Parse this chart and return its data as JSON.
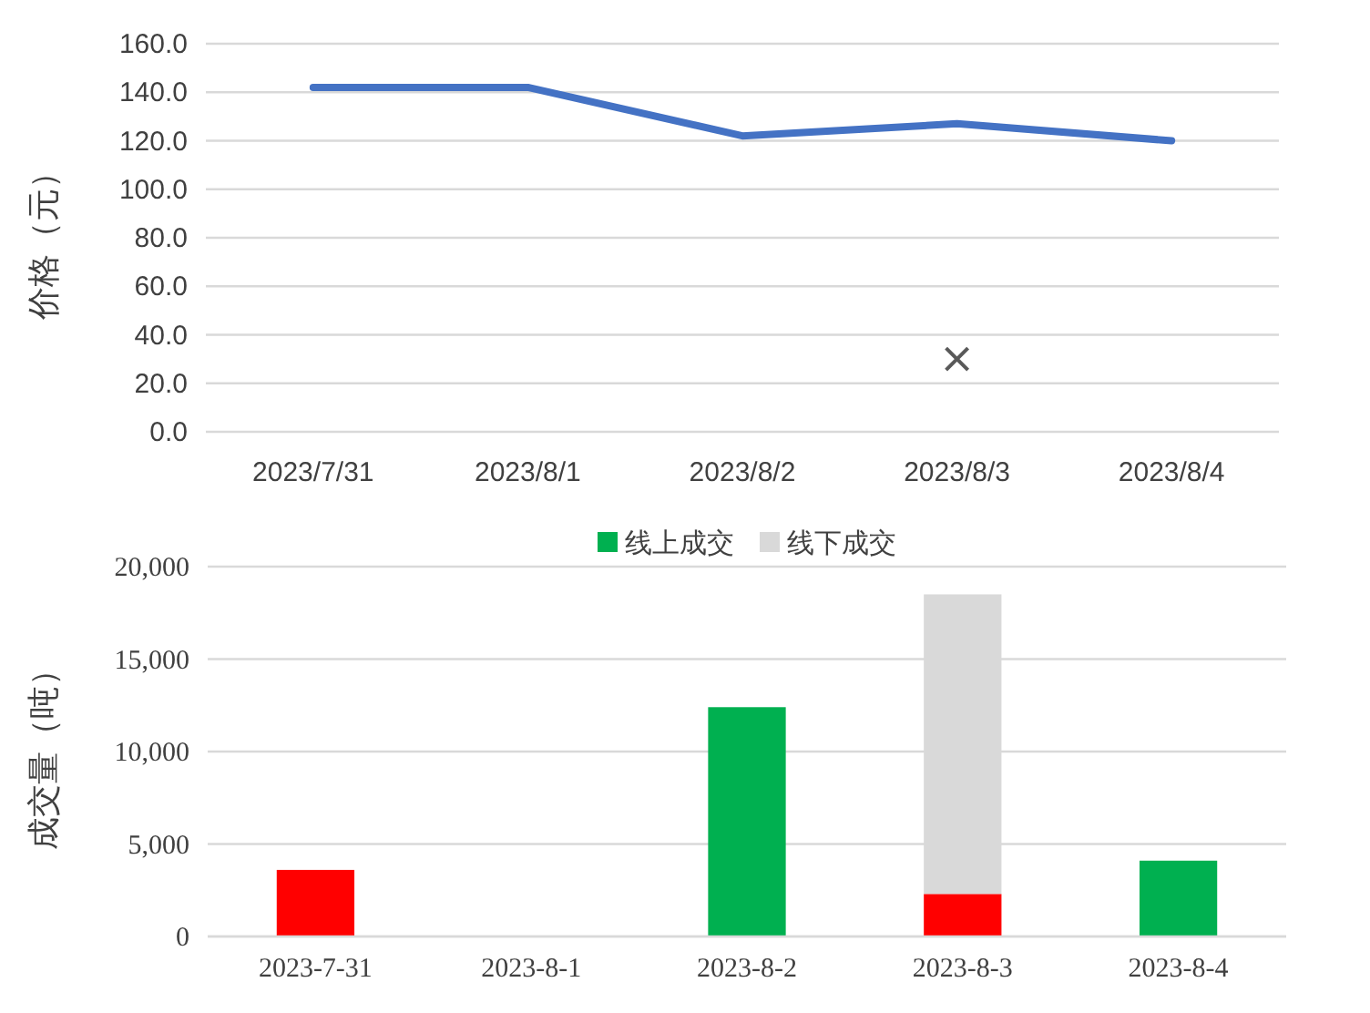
{
  "chart_data": [
    {
      "type": "line",
      "ylabel": "价格（元）",
      "categories": [
        "2023/7/31",
        "2023/8/1",
        "2023/8/2",
        "2023/8/3",
        "2023/8/4"
      ],
      "series": [
        {
          "type": "line",
          "color": "#4472c4",
          "values": [
            142,
            142,
            122,
            127,
            120
          ]
        },
        {
          "type": "scatter",
          "marker": "cross",
          "color": "#595959",
          "values": [
            null,
            null,
            null,
            30,
            null
          ]
        }
      ],
      "ylim": [
        0,
        160
      ],
      "yticks": [
        {
          "value": 0,
          "label": "0.0"
        },
        {
          "value": 20,
          "label": "20.0"
        },
        {
          "value": 40,
          "label": "40.0"
        },
        {
          "value": 60,
          "label": "60.0"
        },
        {
          "value": 80,
          "label": "80.0"
        },
        {
          "value": 100,
          "label": "100.0"
        },
        {
          "value": 120,
          "label": "120.0"
        },
        {
          "value": 140,
          "label": "140.0"
        },
        {
          "value": 160,
          "label": "160.0"
        }
      ],
      "grid": "y",
      "legend": false
    },
    {
      "type": "bar",
      "stacked": true,
      "ylabel": "成交量（吨）",
      "categories": [
        "2023-7-31",
        "2023-8-1",
        "2023-8-2",
        "2023-8-3",
        "2023-8-4"
      ],
      "series": [
        {
          "name": "线上成交",
          "color": "#00b050",
          "colors": [
            "#ff0000",
            null,
            "#00b050",
            "#ff0000",
            "#00b050"
          ],
          "values": [
            3600,
            null,
            12400,
            2300,
            4100
          ]
        },
        {
          "name": "线下成交",
          "color": "#d9d9d9",
          "values": [
            null,
            null,
            null,
            16200,
            null
          ]
        }
      ],
      "ylim": [
        0,
        20000
      ],
      "yticks": [
        {
          "value": 0,
          "label": "0"
        },
        {
          "value": 5000,
          "label": "5,000"
        },
        {
          "value": 10000,
          "label": "10,000"
        },
        {
          "value": 15000,
          "label": "15,000"
        },
        {
          "value": 20000,
          "label": "20,000"
        }
      ],
      "grid": "y",
      "legend": "top"
    }
  ]
}
